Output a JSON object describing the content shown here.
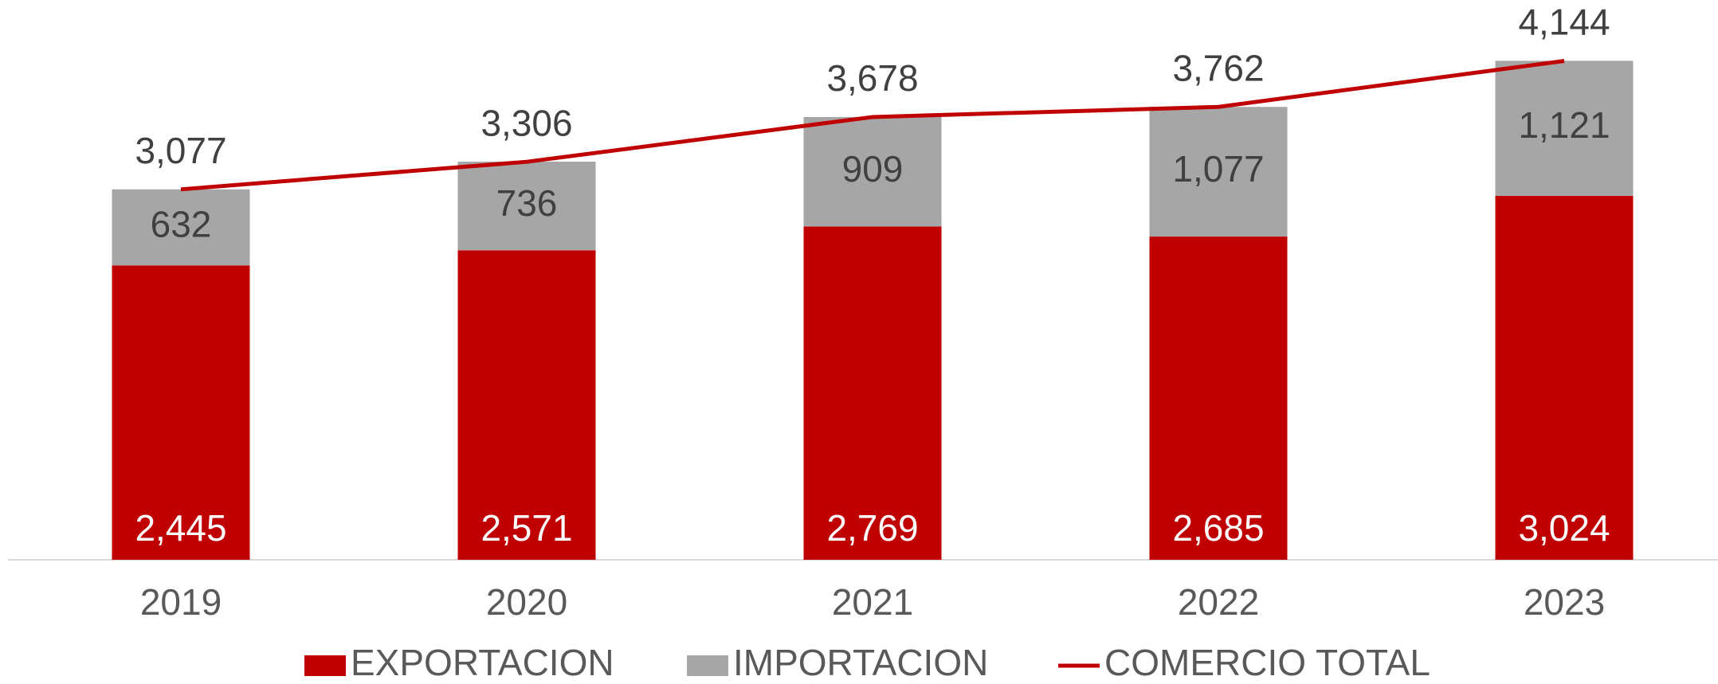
{
  "chart_data": {
    "type": "bar",
    "stacked": true,
    "categories": [
      "2019",
      "2020",
      "2021",
      "2022",
      "2023"
    ],
    "ylim": [
      0,
      4650
    ],
    "series": [
      {
        "name": "EXPORTACION",
        "type": "bar",
        "color": "#c00000",
        "label_color": "#ffffff",
        "values": [
          2445,
          2571,
          2769,
          2685,
          3024
        ],
        "value_labels": [
          "2,445",
          "2,571",
          "2,769",
          "2,685",
          "3,024"
        ]
      },
      {
        "name": "IMPORTACION",
        "type": "bar",
        "color": "#a6a6a6",
        "label_color": "#404040",
        "values": [
          632,
          736,
          909,
          1077,
          1121
        ],
        "value_labels": [
          "632",
          "736",
          "909",
          "1,077",
          "1,121"
        ]
      },
      {
        "name": "COMERCIO TOTAL",
        "type": "line",
        "color": "#c00000",
        "label_color": "#404040",
        "values": [
          3077,
          3306,
          3678,
          3762,
          4144
        ],
        "value_labels": [
          "3,077",
          "3,306",
          "3,678",
          "3,762",
          "4,144"
        ]
      }
    ],
    "legend": "bottom"
  }
}
